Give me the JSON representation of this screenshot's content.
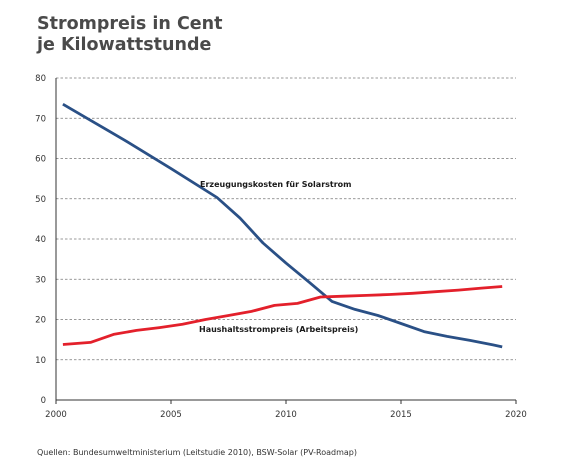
{
  "chart_data": {
    "type": "line",
    "title": [
      "Strompreis in Cent",
      "je Kilowattstunde"
    ],
    "xlabel": "",
    "ylabel": "",
    "xlim": [
      2000,
      2020
    ],
    "ylim": [
      0,
      80
    ],
    "x_ticks": [
      "2000",
      "2005",
      "2010",
      "2015",
      "2020"
    ],
    "y_ticks": [
      "0",
      "10",
      "20",
      "30",
      "40",
      "50",
      "60",
      "70",
      "80"
    ],
    "grid": true,
    "series": [
      {
        "name": "Erzeugungskosten für Solarstrom",
        "color": "#2a5086",
        "x": [
          2000.3,
          2001.5,
          2003,
          2005,
          2007,
          2008,
          2009,
          2010,
          2011,
          2012,
          2013,
          2014,
          2015,
          2016,
          2017,
          2018,
          2019,
          2019.4
        ],
        "y": [
          73.5,
          69.5,
          64.5,
          57.5,
          50.3,
          45.2,
          39.0,
          34.0,
          29.3,
          24.5,
          22.5,
          21.0,
          19.0,
          17.0,
          15.8,
          14.8,
          13.7,
          13.2
        ]
      },
      {
        "name": "Haushaltsstrompreis (Arbeitspreis)",
        "color": "#e3202b",
        "x": [
          2000.3,
          2001.5,
          2002.5,
          2003.5,
          2004.5,
          2005.5,
          2006.5,
          2007.5,
          2008.5,
          2009.5,
          2010.5,
          2011.5,
          2012.5,
          2013.5,
          2014.5,
          2015.5,
          2016.5,
          2017.5,
          2018.5,
          2019.4
        ],
        "y": [
          13.8,
          14.3,
          16.3,
          17.3,
          18.0,
          18.8,
          20.0,
          21.0,
          22.0,
          23.5,
          24.0,
          25.6,
          25.8,
          26.0,
          26.2,
          26.5,
          26.9,
          27.3,
          27.8,
          28.2
        ]
      }
    ],
    "annotations": [
      "Erzeugungskosten für Solarstrom",
      "Haushaltsstrompreis (Arbeitspreis)"
    ],
    "source": "Quellen: Bundesumweltministerium (Leitstudie 2010), BSW-Solar (PV-Roadmap)"
  }
}
